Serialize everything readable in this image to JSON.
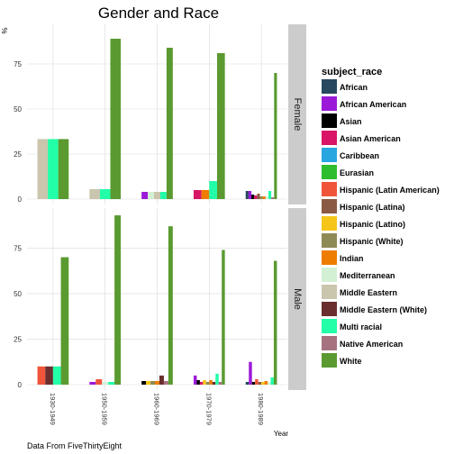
{
  "chart_data": {
    "type": "bar",
    "title": "Gender and Race",
    "ylabel": "%",
    "xlabel": "Year",
    "caption": "Data From FiveThirtyEight",
    "ylim": [
      0,
      95
    ],
    "yticks": [
      0,
      25,
      50,
      75
    ],
    "categories": [
      "1930-1949",
      "1950-1959",
      "1960-1969",
      "1970-1979",
      "1980-1989"
    ],
    "legend_title": "subject_race",
    "legend_position": "right",
    "legend": [
      {
        "name": "African",
        "color": "#27485e"
      },
      {
        "name": "African American",
        "color": "#9b1ad8"
      },
      {
        "name": "Asian",
        "color": "#000000"
      },
      {
        "name": "Asian American",
        "color": "#d81566"
      },
      {
        "name": "Caribbean",
        "color": "#28a6e0"
      },
      {
        "name": "Eurasian",
        "color": "#2ebd2e"
      },
      {
        "name": "Hispanic (Latin American)",
        "color": "#f0553a"
      },
      {
        "name": "Hispanic (Latina)",
        "color": "#8b5a45"
      },
      {
        "name": "Hispanic (Latino)",
        "color": "#f5c518"
      },
      {
        "name": "Hispanic (White)",
        "color": "#8e8a55"
      },
      {
        "name": "Indian",
        "color": "#ee7c00"
      },
      {
        "name": "Mediterranean",
        "color": "#d4f0d4"
      },
      {
        "name": "Middle Eastern",
        "color": "#cac5ad"
      },
      {
        "name": "Middle Eastern (White)",
        "color": "#6b2e2e"
      },
      {
        "name": "Multi racial",
        "color": "#22ffa8"
      },
      {
        "name": "Native American",
        "color": "#a7727f"
      },
      {
        "name": "White",
        "color": "#5a9a31"
      }
    ],
    "facets": [
      {
        "label": "Female",
        "groups": [
          {
            "category": "1930-1949",
            "bars": [
              {
                "race": "Middle Eastern",
                "value": 33.3
              },
              {
                "race": "Multi racial",
                "value": 33.3
              },
              {
                "race": "White",
                "value": 33.3
              }
            ]
          },
          {
            "category": "1950-1959",
            "bars": [
              {
                "race": "Middle Eastern",
                "value": 5.5
              },
              {
                "race": "Multi racial",
                "value": 5.5
              },
              {
                "race": "White",
                "value": 89
              }
            ]
          },
          {
            "category": "1960-1969",
            "bars": [
              {
                "race": "African American",
                "value": 4
              },
              {
                "race": "Mediterranean",
                "value": 4
              },
              {
                "race": "Middle Eastern",
                "value": 4
              },
              {
                "race": "Multi racial",
                "value": 4
              },
              {
                "race": "White",
                "value": 84
              }
            ]
          },
          {
            "category": "1970-1979",
            "bars": [
              {
                "race": "Asian American",
                "value": 5
              },
              {
                "race": "Indian",
                "value": 5
              },
              {
                "race": "Multi racial",
                "value": 10
              },
              {
                "race": "White",
                "value": 81
              }
            ]
          },
          {
            "category": "1980-1989",
            "bars": [
              {
                "race": "African",
                "value": 4.5
              },
              {
                "race": "African American",
                "value": 4.5
              },
              {
                "race": "Asian",
                "value": 2.5
              },
              {
                "race": "Asian American",
                "value": 2
              },
              {
                "race": "Hispanic (Latina)",
                "value": 3
              },
              {
                "race": "Hispanic (White)",
                "value": 1.5
              },
              {
                "race": "Indian",
                "value": 1.5
              },
              {
                "race": "Mediterranean",
                "value": 1.5
              },
              {
                "race": "Multi racial",
                "value": 4.5
              },
              {
                "race": "Native American",
                "value": 1
              },
              {
                "race": "White",
                "value": 70
              }
            ]
          }
        ]
      },
      {
        "label": "Male",
        "groups": [
          {
            "category": "1930-1949",
            "bars": [
              {
                "race": "Hispanic (Latin American)",
                "value": 10
              },
              {
                "race": "Middle Eastern (White)",
                "value": 10
              },
              {
                "race": "Multi racial",
                "value": 10
              },
              {
                "race": "White",
                "value": 70
              }
            ]
          },
          {
            "category": "1950-1959",
            "bars": [
              {
                "race": "African American",
                "value": 1.5
              },
              {
                "race": "Hispanic (Latin American)",
                "value": 3
              },
              {
                "race": "Mediterranean",
                "value": 1.5
              },
              {
                "race": "Multi racial",
                "value": 1.5
              },
              {
                "race": "White",
                "value": 93
              }
            ]
          },
          {
            "category": "1960-1969",
            "bars": [
              {
                "race": "Asian",
                "value": 2
              },
              {
                "race": "Hispanic (Latino)",
                "value": 2
              },
              {
                "race": "Hispanic (White)",
                "value": 2
              },
              {
                "race": "Indian",
                "value": 2
              },
              {
                "race": "Middle Eastern (White)",
                "value": 5
              },
              {
                "race": "Native American",
                "value": 2
              },
              {
                "race": "White",
                "value": 87
              }
            ]
          },
          {
            "category": "1970-1979",
            "bars": [
              {
                "race": "African American",
                "value": 5
              },
              {
                "race": "Asian",
                "value": 2.5
              },
              {
                "race": "Asian American",
                "value": 1.5
              },
              {
                "race": "Hispanic (Latino)",
                "value": 2.5
              },
              {
                "race": "Hispanic (White)",
                "value": 1.5
              },
              {
                "race": "Indian",
                "value": 2.5
              },
              {
                "race": "Middle Eastern (White)",
                "value": 1.5
              },
              {
                "race": "Multi racial",
                "value": 6
              },
              {
                "race": "Native American",
                "value": 1.5
              },
              {
                "race": "White",
                "value": 74
              }
            ]
          },
          {
            "category": "1980-1989",
            "bars": [
              {
                "race": "African",
                "value": 1.5
              },
              {
                "race": "African American",
                "value": 12.5
              },
              {
                "race": "Asian",
                "value": 1.5
              },
              {
                "race": "Hispanic (Latin American)",
                "value": 3
              },
              {
                "race": "Hispanic (Latina)",
                "value": 1.5
              },
              {
                "race": "Hispanic (Latino)",
                "value": 1.5
              },
              {
                "race": "Indian",
                "value": 2
              },
              {
                "race": "Mediterranean",
                "value": 1.5
              },
              {
                "race": "Multi racial",
                "value": 4
              },
              {
                "race": "White",
                "value": 68
              }
            ]
          }
        ]
      }
    ]
  }
}
